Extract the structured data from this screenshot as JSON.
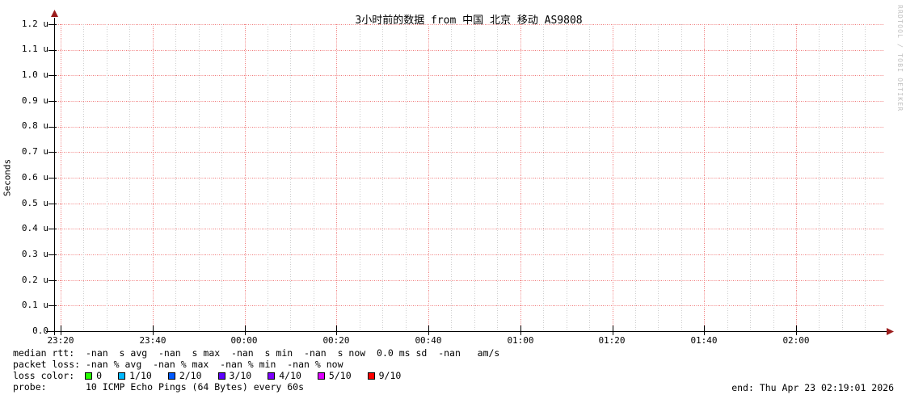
{
  "title": "3小时前的数据 from 中国 北京 移动 AS9808",
  "watermark": "RRDTOOL / TOBI OETIKER",
  "chart_data": {
    "type": "line",
    "title": "3小时前的数据 from 中国 北京 移动 AS9808",
    "xlabel": "",
    "ylabel": "Seconds",
    "ylim": [
      0,
      1.2e-06
    ],
    "y_unit": "u (microseconds prefix)",
    "grid": true,
    "legend_position": "bottom",
    "y_tick_labels": [
      "0.0",
      "0.1 u",
      "0.2 u",
      "0.3 u",
      "0.4 u",
      "0.5 u",
      "0.6 u",
      "0.7 u",
      "0.8 u",
      "0.9 u",
      "1.0 u",
      "1.1 u",
      "1.2 u"
    ],
    "x_tick_labels": [
      "23:20",
      "23:40",
      "00:00",
      "00:20",
      "00:40",
      "01:00",
      "01:20",
      "01:40",
      "02:00"
    ],
    "x_major_interval_minutes": 20,
    "x_minor_interval_minutes": 5,
    "series": [
      {
        "name": "median rtt",
        "values": [],
        "plotted": false
      }
    ],
    "no_data": true
  },
  "legend": {
    "median_rtt": "median rtt:  -nan  s avg  -nan  s max  -nan  s min  -nan  s now  0.0 ms sd  -nan   am/s",
    "packet_loss": "packet loss: -nan % avg  -nan % max  -nan % min  -nan % now",
    "loss_color_label": "loss color:",
    "loss_colors": [
      {
        "label": "0",
        "color": "#26ff00"
      },
      {
        "label": "1/10",
        "color": "#00b8ff"
      },
      {
        "label": "2/10",
        "color": "#0059ff"
      },
      {
        "label": "3/10",
        "color": "#5e00ff"
      },
      {
        "label": "4/10",
        "color": "#7e00ff"
      },
      {
        "label": "5/10",
        "color": "#dd00ff"
      },
      {
        "label": "9/10",
        "color": "#ff0000"
      }
    ],
    "probe": "probe:       10 ICMP Echo Pings (64 Bytes) every 60s",
    "end": "end: Thu Apr 23 02:19:01 2026"
  },
  "colors": {
    "background": "#ffffff",
    "text": "#000000",
    "major_grid": "#f07c7c",
    "minor_grid": "#cccccc",
    "axis": "#000000",
    "arrow": "#9b1c1c",
    "watermark": "#c0c0c0",
    "swatch_border": "#000000"
  }
}
